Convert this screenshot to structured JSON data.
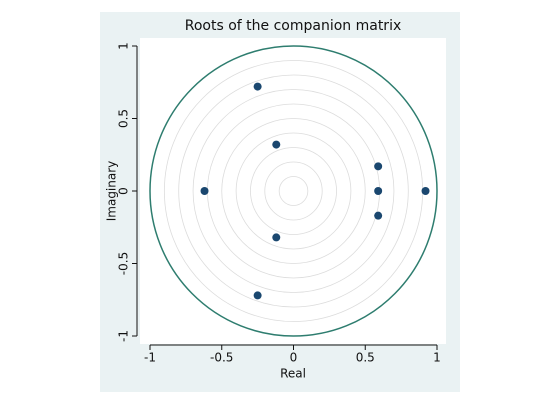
{
  "chart_data": {
    "type": "scatter",
    "title": "Roots of the companion matrix",
    "xlabel": "Real",
    "ylabel": "Imaginary",
    "x": [
      0.92,
      0.59,
      0.59,
      0.59,
      -0.12,
      -0.12,
      -0.25,
      -0.25,
      -0.62
    ],
    "values": [
      0,
      0.17,
      0,
      -0.17,
      0.32,
      -0.32,
      0.72,
      -0.72,
      0
    ],
    "color": "#1a476f",
    "circle_color": "#2e7d6f",
    "xlim": [
      -1,
      1
    ],
    "ylim": [
      -1,
      1
    ],
    "xticks": [
      -1,
      -0.5,
      0,
      0.5,
      1
    ],
    "yticks": [
      -1,
      -0.5,
      0,
      0.5,
      1
    ],
    "grid": true
  }
}
